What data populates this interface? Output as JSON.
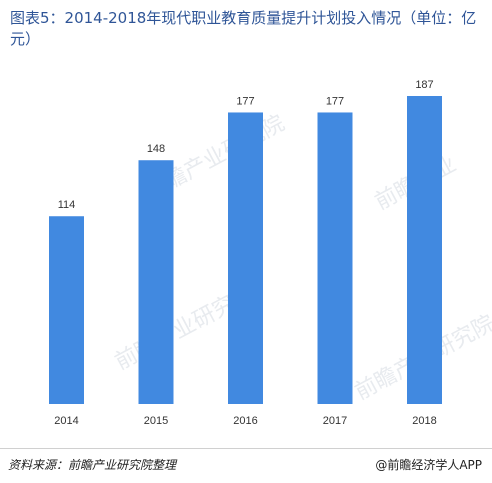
{
  "title": "图表5：2014-2018年现代职业教育质量提升计划投入情况（单位：亿元）",
  "footer": {
    "source": "资料来源：前瞻产业研究院整理",
    "brand": "@前瞻经济学人APP"
  },
  "colors": {
    "bar": "#4189e0",
    "title": "#2f5597"
  },
  "chart_data": {
    "type": "bar",
    "title": "图表5：2014-2018年现代职业教育质量提升计划投入情况（单位：亿元）",
    "categories": [
      "2014",
      "2015",
      "2016",
      "2017",
      "2018"
    ],
    "values": [
      114,
      148,
      177,
      177,
      187
    ],
    "xlabel": "",
    "ylabel": "",
    "ylim": [
      0,
      187
    ],
    "grid": false,
    "legend": "none"
  }
}
